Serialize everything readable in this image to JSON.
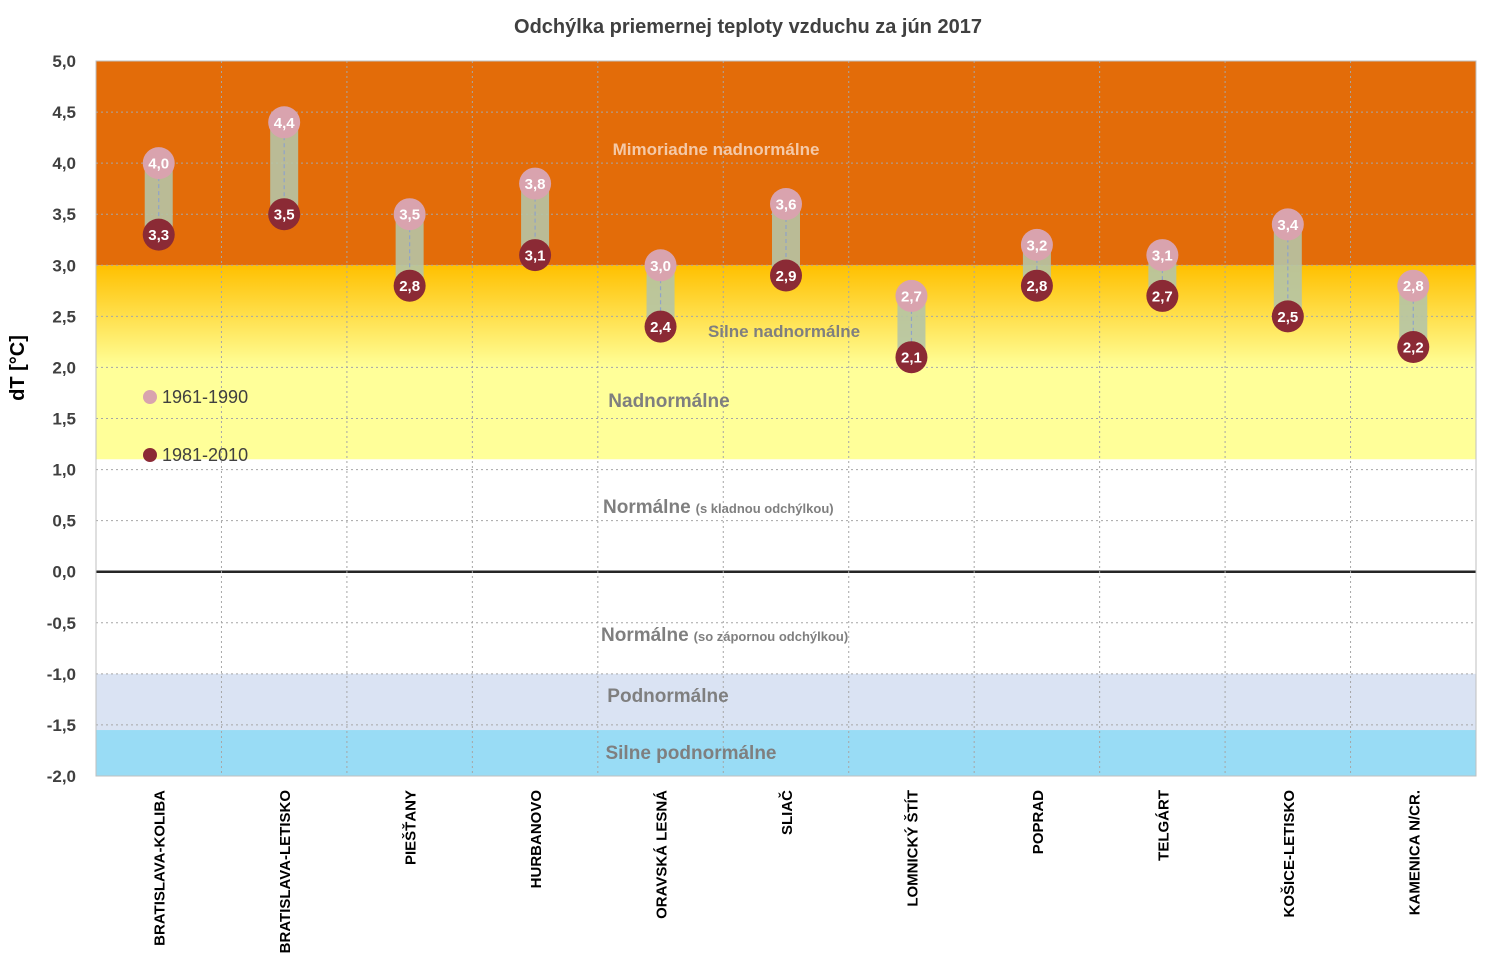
{
  "chart_data": {
    "type": "range-dot",
    "title": "Odchýlka priemernej teploty vzduchu za jún 2017",
    "ylabel": "dT [°C]",
    "ylim": [
      -2.0,
      5.0
    ],
    "yticks": [
      "5,0",
      "4,5",
      "4,0",
      "3,5",
      "3,0",
      "2,5",
      "2,0",
      "1,5",
      "1,0",
      "0,5",
      "0,0",
      "-0,5",
      "-1,0",
      "-1,5",
      "-2,0"
    ],
    "categories": [
      "BRATISLAVA-KOLIBA",
      "BRATISLAVA-LETISKO",
      "PIEŠŤANY",
      "HURBANOVO",
      "ORAVSKÁ LESNÁ",
      "SLIAČ",
      "LOMNICKÝ ŠTÍT",
      "POPRAD",
      "TELGÁRT",
      "KOŠICE-LETISKO",
      "KAMENICA N/CR."
    ],
    "series": [
      {
        "name": "1961-1990",
        "color": "#d9a3ae",
        "values": [
          4.0,
          4.4,
          3.5,
          3.8,
          3.0,
          3.6,
          2.7,
          3.2,
          3.1,
          3.4,
          2.8
        ],
        "labels": [
          "4,0",
          "4,4",
          "3,5",
          "3,8",
          "3,0",
          "3,6",
          "2,7",
          "3,2",
          "3,1",
          "3,4",
          "2,8"
        ]
      },
      {
        "name": "1981-2010",
        "color": "#8b2a35",
        "values": [
          3.3,
          3.5,
          2.8,
          3.1,
          2.4,
          2.9,
          2.1,
          2.8,
          2.7,
          2.5,
          2.2
        ],
        "labels": [
          "3,3",
          "3,5",
          "2,8",
          "3,1",
          "2,4",
          "2,9",
          "2,1",
          "2,8",
          "2,7",
          "2,5",
          "2,2"
        ]
      }
    ],
    "zones": [
      {
        "label": "Mimoriadne nadnormálne",
        "from": 3.0,
        "to": 5.0,
        "color": "#e36c09"
      },
      {
        "label": "Silne nadnormálne",
        "from": 2.0,
        "to": 3.0,
        "color_top": "#ffc000",
        "color_bottom": "#ffff99"
      },
      {
        "label": "Nadnormálne",
        "from": 1.1,
        "to": 2.0,
        "color": "#ffff99"
      },
      {
        "label": "Normálne",
        "sub": "(s kladnou odchýlkou)",
        "from": 0.0,
        "to": 1.1,
        "color": "#ffffff"
      },
      {
        "label": "Normálne",
        "sub": "(so zápornou odchýlkou)",
        "from": -1.0,
        "to": 0.0,
        "color": "#ffffff"
      },
      {
        "label": "Podnormálne",
        "from": -1.55,
        "to": -1.0,
        "color": "#dae3f3"
      },
      {
        "label": "Silne podnormálne",
        "from": -2.0,
        "to": -1.55,
        "color": "#99dcf5"
      }
    ],
    "range_bar_color": "#b5c4a6",
    "grid": true,
    "legend_position": "left-middle"
  }
}
